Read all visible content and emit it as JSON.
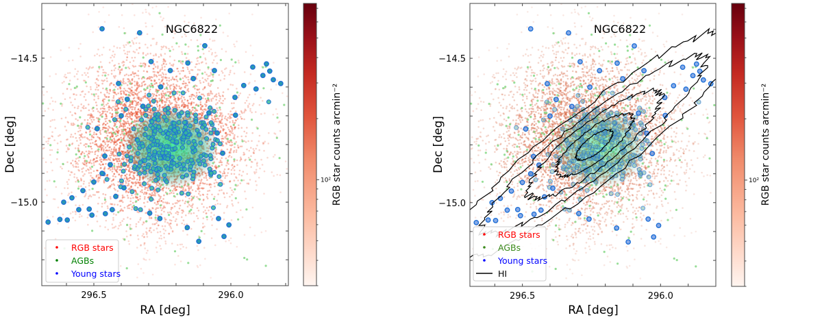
{
  "chart_data": [
    {
      "type": "scatter",
      "title": "NGC6822",
      "xlabel": "RA [deg]",
      "ylabel": "Dec [deg]",
      "xlim": [
        296.69,
        295.79
      ],
      "ylim": [
        -15.29,
        -14.31
      ],
      "xticks": [
        {
          "value": 296.5,
          "label": "296.5"
        },
        {
          "value": 296.0,
          "label": "296.0"
        }
      ],
      "yticks": [
        {
          "value": -14.5,
          "label": "−14.5"
        },
        {
          "value": -15.0,
          "label": "−15.0"
        }
      ],
      "minor_tick_step_x": 0.1,
      "minor_tick_step_y": 0.1,
      "grid": false,
      "legend_position": "bottom-left",
      "legend": [
        {
          "label": "RGB stars",
          "color": "#ff0000",
          "marker": "dot"
        },
        {
          "label": "AGBs",
          "color": "#008000",
          "marker": "dot"
        },
        {
          "label": "Young stars",
          "color": "#0000ff",
          "marker": "dot"
        }
      ],
      "colorbar": {
        "label": "RGB star counts arcmin⁻²",
        "scale": "log",
        "range": [
          30,
          740
        ],
        "tick_label": "10²",
        "tick_value": 100,
        "cmap": "Reds"
      },
      "series": [
        {
          "name": "RGB stars",
          "kind": "density",
          "center": [
            296.27,
            -14.78
          ],
          "sigma": [
            0.17,
            0.15
          ],
          "count": 5000,
          "color": "#e8502f"
        },
        {
          "name": "AGBs",
          "kind": "scatter",
          "center": [
            296.25,
            -14.78
          ],
          "sigma": [
            0.2,
            0.19
          ],
          "count": 260,
          "color": "#7ed67e"
        },
        {
          "name": "Young stars (core)",
          "kind": "scatter",
          "center": [
            296.22,
            -14.81
          ],
          "sigma": [
            0.085,
            0.075
          ],
          "count": 260,
          "color": "#1f6fd6"
        },
        {
          "name": "Young stars",
          "kind": "scatter",
          "color": "#1f6fd6",
          "points": [
            [
              296.47,
              -14.398
            ],
            [
              296.333,
              -14.412
            ],
            [
              296.095,
              -14.457
            ],
            [
              296.291,
              -14.512
            ],
            [
              296.157,
              -14.517
            ],
            [
              296.221,
              -14.543
            ],
            [
              296.06,
              -14.543
            ],
            [
              296.41,
              -14.588
            ],
            [
              296.256,
              -14.6
            ],
            [
              296.137,
              -14.571
            ],
            [
              295.953,
              -14.595
            ],
            [
              295.92,
              -14.531
            ],
            [
              295.883,
              -14.56
            ],
            [
              295.858,
              -14.545
            ],
            [
              295.818,
              -14.588
            ],
            [
              295.908,
              -14.607
            ],
            [
              295.87,
              -14.52
            ],
            [
              295.845,
              -14.575
            ],
            [
              296.378,
              -14.643
            ],
            [
              296.488,
              -14.745
            ],
            [
              296.321,
              -14.667
            ],
            [
              295.985,
              -14.636
            ],
            [
              295.983,
              -14.698
            ],
            [
              296.667,
              -15.069
            ],
            [
              296.624,
              -15.06
            ],
            [
              296.597,
              -15.062
            ],
            [
              296.555,
              -15.026
            ],
            [
              296.517,
              -15.024
            ],
            [
              296.507,
              -15.045
            ],
            [
              296.458,
              -15.04
            ],
            [
              296.433,
              -15.026
            ],
            [
              296.296,
              -15.038
            ],
            [
              296.259,
              -15.057
            ],
            [
              296.159,
              -15.088
            ],
            [
              296.117,
              -15.136
            ],
            [
              296.045,
              -15.057
            ],
            [
              296.025,
              -15.119
            ],
            [
              296.007,
              -15.079
            ],
            [
              296.61,
              -15.0
            ],
            [
              296.58,
              -14.985
            ],
            [
              296.54,
              -14.96
            ],
            [
              296.5,
              -14.93
            ],
            [
              296.47,
              -14.9
            ],
            [
              296.44,
              -14.87
            ],
            [
              296.42,
              -14.98
            ],
            [
              296.39,
              -14.95
            ],
            [
              296.46,
              -14.84
            ],
            [
              296.4,
              -14.7
            ],
            [
              296.08,
              -14.69
            ],
            [
              296.05,
              -14.76
            ],
            [
              296.03,
              -14.83
            ]
          ]
        }
      ]
    },
    {
      "type": "scatter",
      "title": "NGC6822",
      "xlabel": "RA [deg]",
      "ylabel": "Dec [deg]",
      "xlim": [
        296.69,
        295.8
      ],
      "ylim": [
        -15.29,
        -14.31
      ],
      "xticks": [
        {
          "value": 296.5,
          "label": "296.5"
        },
        {
          "value": 296.0,
          "label": "296.0"
        }
      ],
      "yticks": [
        {
          "value": -14.5,
          "label": "−14.5"
        },
        {
          "value": -15.0,
          "label": "−15.0"
        }
      ],
      "grid": false,
      "legend_position": "bottom-left",
      "legend": [
        {
          "label": "RGB stars",
          "color": "#ff0000",
          "marker": "dot"
        },
        {
          "label": "AGBs",
          "color": "#008000",
          "marker": "dot"
        },
        {
          "label": "Young stars",
          "color": "#0000ff",
          "marker": "dot"
        },
        {
          "label": "HI",
          "color": "#000000",
          "marker": "line"
        }
      ],
      "colorbar": {
        "label": "RGB star counts arcmin⁻²",
        "scale": "log",
        "range": [
          30,
          740
        ],
        "tick_label": "10²",
        "tick_value": 100,
        "cmap": "Reds"
      },
      "hi_contours": {
        "center": [
          296.24,
          -14.8
        ],
        "position_angle_deg": 38,
        "levels": [
          {
            "semi_major_deg": 0.66,
            "semi_minor_deg": 0.13
          },
          {
            "semi_major_deg": 0.5,
            "semi_minor_deg": 0.1
          },
          {
            "semi_major_deg": 0.3,
            "semi_minor_deg": 0.08
          },
          {
            "semi_major_deg": 0.17,
            "semi_minor_deg": 0.055
          },
          {
            "semi_major_deg": 0.08,
            "semi_minor_deg": 0.03
          }
        ]
      }
    }
  ]
}
